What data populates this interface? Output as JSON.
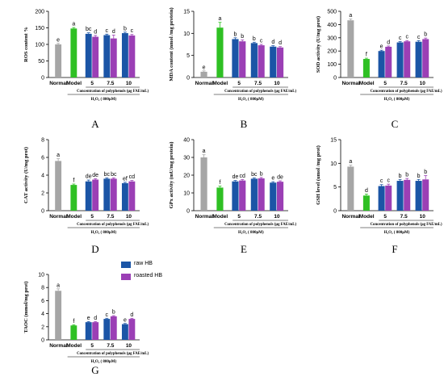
{
  "legend": {
    "items": [
      {
        "name": "raw HB",
        "color": "#1b55a6"
      },
      {
        "name": "roasted HB",
        "color": "#9b3fb5"
      }
    ]
  },
  "colors": {
    "Normal": "#a6a6a6",
    "Model": "#2fc024",
    "raw HB": "#1b55a6",
    "roasted HB": "#9b3fb5"
  },
  "chart_data": [
    {
      "type": "bar",
      "panel_label": "A",
      "ylabel": "ROS content %",
      "ylim": [
        0,
        200
      ],
      "yticks": [
        0,
        50,
        100,
        150,
        200
      ],
      "groups": [
        {
          "name": "Normal",
          "bars": [
            {
              "series": "Normal",
              "value": 100,
              "error": 3,
              "letter": "e"
            }
          ]
        },
        {
          "name": "Model",
          "bars": [
            {
              "series": "Model",
              "value": 148,
              "error": 3,
              "letter": "a"
            }
          ]
        },
        {
          "name": "5",
          "bars": [
            {
              "series": "raw HB",
              "value": 132,
              "error": 3,
              "letter": "bc"
            },
            {
              "series": "roasted HB",
              "value": 123,
              "error": 4,
              "letter": "d"
            }
          ]
        },
        {
          "name": "7.5",
          "bars": [
            {
              "series": "raw HB",
              "value": 128,
              "error": 3,
              "letter": "c"
            },
            {
              "series": "roasted HB",
              "value": 118,
              "error": 10,
              "letter": "d"
            }
          ]
        },
        {
          "name": "10",
          "bars": [
            {
              "series": "raw HB",
              "value": 134,
              "error": 3,
              "letter": "b"
            },
            {
              "series": "roasted HB",
              "value": 127,
              "error": 3,
              "letter": "c"
            }
          ]
        }
      ],
      "conc_label": "Concentration of polyphenols (μg FAE/mL)",
      "h2o2_label": "H₂O₂ ( 800μM)"
    },
    {
      "type": "bar",
      "panel_label": "B",
      "ylabel": "MDA content (nmol /mg protein)",
      "ylim": [
        0,
        15
      ],
      "yticks": [
        0,
        5,
        10,
        15
      ],
      "groups": [
        {
          "name": "Normal",
          "bars": [
            {
              "series": "Normal",
              "value": 1.3,
              "error": 0.2,
              "letter": "e"
            }
          ]
        },
        {
          "name": "Model",
          "bars": [
            {
              "series": "Model",
              "value": 11.3,
              "error": 1.2,
              "letter": "a"
            }
          ]
        },
        {
          "name": "5",
          "bars": [
            {
              "series": "raw HB",
              "value": 8.7,
              "error": 0.3,
              "letter": "b"
            },
            {
              "series": "roasted HB",
              "value": 8.2,
              "error": 0.3,
              "letter": "b"
            }
          ]
        },
        {
          "name": "7.5",
          "bars": [
            {
              "series": "raw HB",
              "value": 7.8,
              "error": 0.2,
              "letter": "b"
            },
            {
              "series": "roasted HB",
              "value": 7.3,
              "error": 0.2,
              "letter": "c"
            }
          ]
        },
        {
          "name": "10",
          "bars": [
            {
              "series": "raw HB",
              "value": 7.0,
              "error": 0.2,
              "letter": "d"
            },
            {
              "series": "roasted HB",
              "value": 6.8,
              "error": 0.2,
              "letter": "d"
            }
          ]
        }
      ],
      "conc_label": "Concentration of polyphenols (μg FAE/mL)",
      "h2o2_label": "H₂O₂ ( 800μM)"
    },
    {
      "type": "bar",
      "panel_label": "C",
      "ylabel": "SOD activity (U/mg prot)",
      "ylim": [
        0,
        500
      ],
      "yticks": [
        0,
        100,
        200,
        300,
        400,
        500
      ],
      "groups": [
        {
          "name": "Normal",
          "bars": [
            {
              "series": "Normal",
              "value": 432,
              "error": 10,
              "letter": "a"
            }
          ]
        },
        {
          "name": "Model",
          "bars": [
            {
              "series": "Model",
              "value": 140,
              "error": 6,
              "letter": "f"
            }
          ]
        },
        {
          "name": "5",
          "bars": [
            {
              "series": "raw HB",
              "value": 200,
              "error": 6,
              "letter": "e"
            },
            {
              "series": "roasted HB",
              "value": 232,
              "error": 6,
              "letter": "d"
            }
          ]
        },
        {
          "name": "7.5",
          "bars": [
            {
              "series": "raw HB",
              "value": 265,
              "error": 6,
              "letter": "c"
            },
            {
              "series": "roasted HB",
              "value": 273,
              "error": 6,
              "letter": "c"
            }
          ]
        },
        {
          "name": "10",
          "bars": [
            {
              "series": "raw HB",
              "value": 270,
              "error": 8,
              "letter": "c"
            },
            {
              "series": "roasted HB",
              "value": 290,
              "error": 8,
              "letter": "b"
            }
          ]
        }
      ],
      "conc_label": "Concentration of polyphenols (μg FAE/mL)",
      "h2o2_label": "H₂O₂ ( 800μM)"
    },
    {
      "type": "bar",
      "panel_label": "D",
      "ylabel": "CAT  activity (U/mg prot)",
      "ylim": [
        0,
        8
      ],
      "yticks": [
        0,
        2,
        4,
        6,
        8
      ],
      "groups": [
        {
          "name": "Normal",
          "bars": [
            {
              "series": "Normal",
              "value": 5.6,
              "error": 0.25,
              "letter": "a"
            }
          ]
        },
        {
          "name": "Model",
          "bars": [
            {
              "series": "Model",
              "value": 2.9,
              "error": 0.1,
              "letter": "f"
            }
          ]
        },
        {
          "name": "5",
          "bars": [
            {
              "series": "raw HB",
              "value": 3.3,
              "error": 0.15,
              "letter": "de"
            },
            {
              "series": "roasted HB",
              "value": 3.5,
              "error": 0.1,
              "letter": "de"
            }
          ]
        },
        {
          "name": "7.5",
          "bars": [
            {
              "series": "raw HB",
              "value": 3.6,
              "error": 0.1,
              "letter": "bc"
            },
            {
              "series": "roasted HB",
              "value": 3.6,
              "error": 0.1,
              "letter": "bc"
            }
          ]
        },
        {
          "name": "10",
          "bars": [
            {
              "series": "raw HB",
              "value": 3.1,
              "error": 0.1,
              "letter": "ef"
            },
            {
              "series": "roasted HB",
              "value": 3.3,
              "error": 0.1,
              "letter": "cd"
            }
          ]
        }
      ],
      "conc_label": "Concentration of polyphenols (μg FAE/mL)",
      "h2o2_label": "H₂O₂ ( 800μM)"
    },
    {
      "type": "bar",
      "panel_label": "E",
      "ylabel": "GPx activity (mU/mg protein)",
      "ylim": [
        0,
        40
      ],
      "yticks": [
        0,
        10,
        20,
        30,
        40
      ],
      "groups": [
        {
          "name": "Normal",
          "bars": [
            {
              "series": "Normal",
              "value": 30,
              "error": 1.5,
              "letter": "a"
            }
          ]
        },
        {
          "name": "Model",
          "bars": [
            {
              "series": "Model",
              "value": 13,
              "error": 0.8,
              "letter": "f"
            }
          ]
        },
        {
          "name": "5",
          "bars": [
            {
              "series": "raw HB",
              "value": 16.5,
              "error": 0.5,
              "letter": "de"
            },
            {
              "series": "roasted HB",
              "value": 17,
              "error": 0.5,
              "letter": "cd"
            }
          ]
        },
        {
          "name": "7.5",
          "bars": [
            {
              "series": "raw HB",
              "value": 18,
              "error": 0.5,
              "letter": "bc"
            },
            {
              "series": "roasted HB",
              "value": 18.2,
              "error": 0.5,
              "letter": "b"
            }
          ]
        },
        {
          "name": "10",
          "bars": [
            {
              "series": "raw HB",
              "value": 15.8,
              "error": 0.5,
              "letter": "e"
            },
            {
              "series": "roasted HB",
              "value": 16.3,
              "error": 0.5,
              "letter": "de"
            }
          ]
        }
      ],
      "conc_label": "Concentration of polyphenols (μg FAE/mL)",
      "h2o2_label": "H₂O₂ ( 800μM)"
    },
    {
      "type": "bar",
      "panel_label": "F",
      "ylabel": "GSH  level (umol /mg prot)",
      "ylim": [
        0,
        15
      ],
      "yticks": [
        0,
        5,
        10,
        15
      ],
      "groups": [
        {
          "name": "Normal",
          "bars": [
            {
              "series": "Normal",
              "value": 9.3,
              "error": 0.3,
              "letter": "a"
            }
          ]
        },
        {
          "name": "Model",
          "bars": [
            {
              "series": "Model",
              "value": 3.2,
              "error": 0.3,
              "letter": "d"
            }
          ]
        },
        {
          "name": "5",
          "bars": [
            {
              "series": "raw HB",
              "value": 5.2,
              "error": 0.3,
              "letter": "c"
            },
            {
              "series": "roasted HB",
              "value": 5.3,
              "error": 0.3,
              "letter": "c"
            }
          ]
        },
        {
          "name": "7.5",
          "bars": [
            {
              "series": "raw HB",
              "value": 6.3,
              "error": 0.3,
              "letter": "b"
            },
            {
              "series": "roasted HB",
              "value": 6.5,
              "error": 0.3,
              "letter": "b"
            }
          ]
        },
        {
          "name": "10",
          "bars": [
            {
              "series": "raw HB",
              "value": 6.3,
              "error": 0.3,
              "letter": "b"
            },
            {
              "series": "roasted HB",
              "value": 6.6,
              "error": 0.8,
              "letter": "b"
            }
          ]
        }
      ],
      "conc_label": "Concentration of polyphenols (μg FAE/mL)",
      "h2o2_label": "H₂O₂ ( 800μM)"
    },
    {
      "type": "bar",
      "panel_label": "G",
      "ylabel": "TAOC (mmol/mg prot)",
      "ylim": [
        0,
        10
      ],
      "yticks": [
        0,
        2,
        4,
        6,
        8,
        10
      ],
      "groups": [
        {
          "name": "Normal",
          "bars": [
            {
              "series": "Normal",
              "value": 7.5,
              "error": 0.3,
              "letter": "a"
            }
          ]
        },
        {
          "name": "Model",
          "bars": [
            {
              "series": "Model",
              "value": 2.2,
              "error": 0.1,
              "letter": "f"
            }
          ]
        },
        {
          "name": "5",
          "bars": [
            {
              "series": "raw HB",
              "value": 2.7,
              "error": 0.1,
              "letter": "e"
            },
            {
              "series": "roasted HB",
              "value": 2.7,
              "error": 0.1,
              "letter": "d"
            }
          ]
        },
        {
          "name": "7.5",
          "bars": [
            {
              "series": "raw HB",
              "value": 3.2,
              "error": 0.1,
              "letter": "c"
            },
            {
              "series": "roasted HB",
              "value": 3.6,
              "error": 0.1,
              "letter": "b"
            }
          ]
        },
        {
          "name": "10",
          "bars": [
            {
              "series": "raw HB",
              "value": 2.4,
              "error": 0.1,
              "letter": "e"
            },
            {
              "series": "roasted HB",
              "value": 3.2,
              "error": 0.1,
              "letter": "d"
            }
          ]
        }
      ],
      "conc_label": "Concentration of polyphenols (μg FAE/mL)",
      "h2o2_label": "H₂O₂ ( 800μM)"
    }
  ]
}
